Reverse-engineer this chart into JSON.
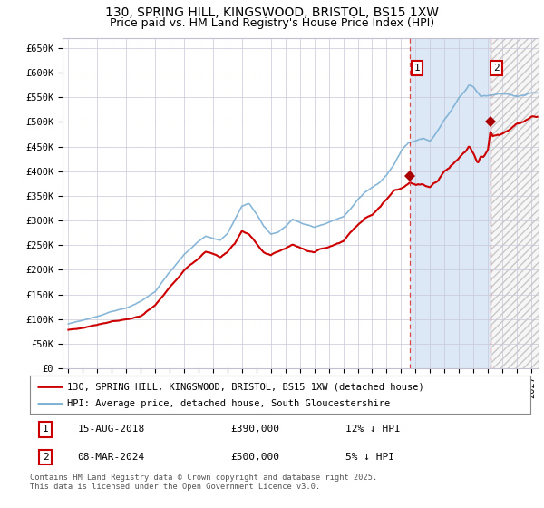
{
  "title_line1": "130, SPRING HILL, KINGSWOOD, BRISTOL, BS15 1XW",
  "title_line2": "Price paid vs. HM Land Registry's House Price Index (HPI)",
  "ylim": [
    0,
    670000
  ],
  "yticks": [
    0,
    50000,
    100000,
    150000,
    200000,
    250000,
    300000,
    350000,
    400000,
    450000,
    500000,
    550000,
    600000,
    650000
  ],
  "ytick_labels": [
    "£0",
    "£50K",
    "£100K",
    "£150K",
    "£200K",
    "£250K",
    "£300K",
    "£350K",
    "£400K",
    "£450K",
    "£500K",
    "£550K",
    "£600K",
    "£650K"
  ],
  "xlim_start": 1994.6,
  "xlim_end": 2027.5,
  "xticks": [
    1995,
    1996,
    1997,
    1998,
    1999,
    2000,
    2001,
    2002,
    2003,
    2004,
    2005,
    2006,
    2007,
    2008,
    2009,
    2010,
    2011,
    2012,
    2013,
    2014,
    2015,
    2016,
    2017,
    2018,
    2019,
    2020,
    2021,
    2022,
    2023,
    2024,
    2025,
    2026,
    2027
  ],
  "hpi_color": "#7bafd4",
  "price_color": "#cc0000",
  "marker_color": "#aa0000",
  "vline_color": "#dd3333",
  "sale1_x": 2018.62,
  "sale1_y": 390000,
  "sale2_x": 2024.18,
  "sale2_y": 500000,
  "sale1_label": "15-AUG-2018",
  "sale1_price": "£390,000",
  "sale1_hpi": "12% ↓ HPI",
  "sale2_label": "08-MAR-2024",
  "sale2_price": "£500,000",
  "sale2_hpi": "5% ↓ HPI",
  "legend_line1": "130, SPRING HILL, KINGSWOOD, BRISTOL, BS15 1XW (detached house)",
  "legend_line2": "HPI: Average price, detached house, South Gloucestershire",
  "footer": "Contains HM Land Registry data © Crown copyright and database right 2025.\nThis data is licensed under the Open Government Licence v3.0."
}
